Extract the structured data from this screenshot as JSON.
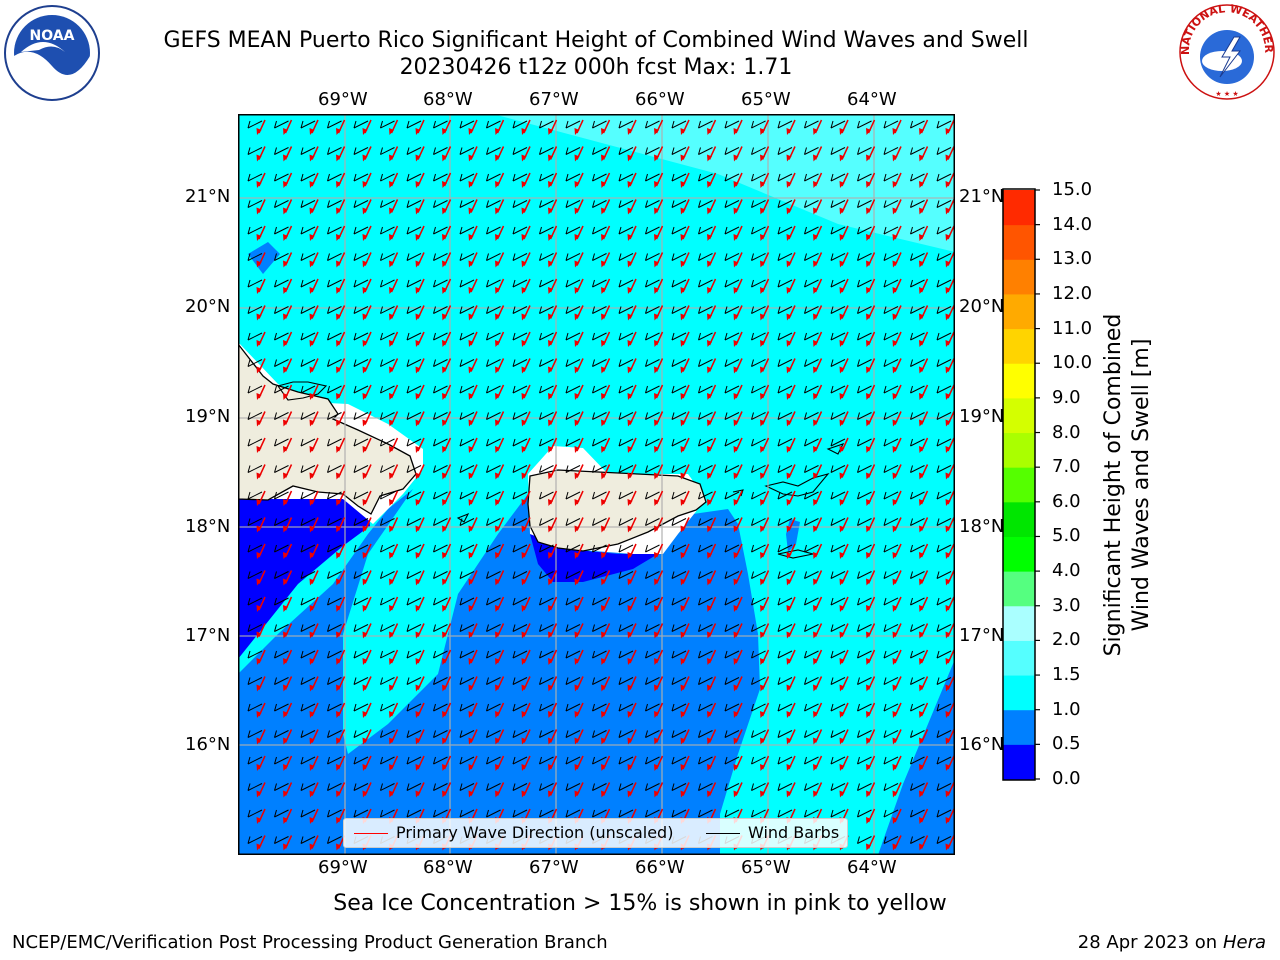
{
  "title": {
    "line1": "GEFS MEAN Puerto Rico Significant Height of Combined Wind Waves and Swell",
    "line2": "20230426 t12z 000h fcst   Max: 1.71"
  },
  "logos": {
    "left": "noaa-logo",
    "right": "national-weather-service-logo",
    "left_center_text": "NOAA",
    "right_ring_text": "NATIONAL WEATHER SERVICE"
  },
  "map": {
    "lon_labels": [
      "69°W",
      "68°W",
      "67°W",
      "66°W",
      "65°W",
      "64°W"
    ],
    "lat_labels": [
      "21°N",
      "20°N",
      "19°N",
      "18°N",
      "17°N",
      "16°N"
    ],
    "legend": {
      "wave_label": "Primary Wave Direction (unscaled)",
      "wind_label": "Wind Barbs",
      "wave_color": "#ff0000",
      "wind_color": "#000000"
    },
    "colors": {
      "land": "#efedde",
      "ocean_light": "#55ffff",
      "ocean_cyan": "#00ffff",
      "ocean_mid": "#0080ff",
      "ocean_deep": "#0000ff"
    }
  },
  "colorbar": {
    "label_line1": "Significant Height of Combined",
    "label_line2": "Wind Waves and Swell [m]",
    "ticks": [
      "15.0",
      "14.0",
      "13.0",
      "12.0",
      "11.0",
      "10.0",
      "9.0",
      "8.0",
      "7.0",
      "6.0",
      "5.0",
      "4.0",
      "3.0",
      "2.0",
      "1.5",
      "1.0",
      "0.5",
      "0.0"
    ],
    "colors": [
      "#0000ff",
      "#0080ff",
      "#00ffff",
      "#55ffff",
      "#aaffff",
      "#55ff80",
      "#00ff00",
      "#00e600",
      "#55ff00",
      "#aaff00",
      "#d4ff00",
      "#ffff00",
      "#ffd400",
      "#ffaa00",
      "#ff8000",
      "#ff5500",
      "#ff2a00"
    ]
  },
  "subtitle": "Sea Ice Concentration > 15% is shown in pink to yellow",
  "footer": {
    "left": "NCEP/EMC/Verification Post Processing Product Generation Branch",
    "right_date": "28 Apr 2023 on ",
    "right_host": "Hera"
  }
}
